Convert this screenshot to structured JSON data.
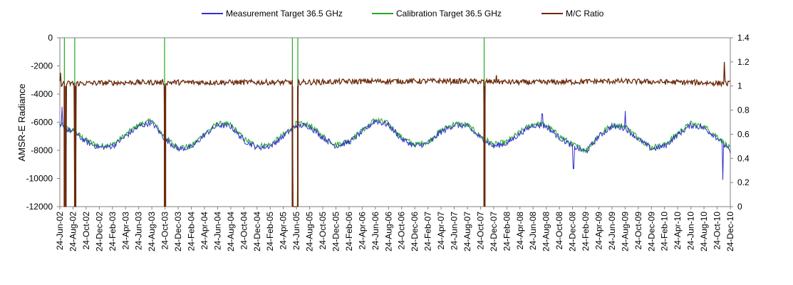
{
  "chart_data": {
    "type": "line",
    "ylabel": "AMSR-E Radiance",
    "y_left_ticks": [
      "0",
      "-2000",
      "-4000",
      "-6000",
      "-8000",
      "-10000",
      "-12000"
    ],
    "y_left_range": [
      -12000,
      0
    ],
    "y_right_ticks": [
      "1.4",
      "1.2",
      "1",
      "0.8",
      "0.6",
      "0.4",
      "0.2",
      "0"
    ],
    "y_right_range": [
      0,
      1.4
    ],
    "x_range": [
      "2002-06-24",
      "2010-12-24"
    ],
    "x_ticks": [
      "24-Jun-02",
      "24-Aug-02",
      "24-Oct-02",
      "24-Dec-02",
      "24-Feb-03",
      "24-Apr-03",
      "24-Jun-03",
      "24-Aug-03",
      "24-Oct-03",
      "24-Dec-03",
      "24-Feb-04",
      "24-Apr-04",
      "24-Jun-04",
      "24-Aug-04",
      "24-Oct-04",
      "24-Dec-04",
      "24-Feb-05",
      "24-Apr-05",
      "24-Jun-05",
      "24-Aug-05",
      "24-Oct-05",
      "24-Dec-05",
      "24-Feb-06",
      "24-Apr-06",
      "24-Jun-06",
      "24-Aug-06",
      "24-Oct-06",
      "24-Dec-06",
      "24-Feb-07",
      "24-Apr-07",
      "24-Jun-07",
      "24-Aug-07",
      "24-Oct-07",
      "24-Dec-07",
      "24-Feb-08",
      "24-Apr-08",
      "24-Jun-08",
      "24-Aug-08",
      "24-Oct-08",
      "24-Dec-08",
      "24-Feb-09",
      "24-Apr-09",
      "24-Jun-09",
      "24-Aug-09",
      "24-Oct-09",
      "24-Dec-09",
      "24-Feb-10",
      "24-Apr-10",
      "24-Jun-10",
      "24-Aug-10",
      "24-Oct-10",
      "24-Dec-10"
    ],
    "legend_position": "top",
    "grid": false,
    "series": [
      {
        "name": "Measurement Target 36.5 GHz",
        "axis": "left",
        "color": "#3333cc",
        "seasonal_points": [
          [
            "2002-06-24",
            -6300
          ],
          [
            "2002-08-24",
            -6700
          ],
          [
            "2002-10-24",
            -7400
          ],
          [
            "2002-12-24",
            -7800
          ],
          [
            "2003-02-24",
            -7700
          ],
          [
            "2003-04-24",
            -7000
          ],
          [
            "2003-06-24",
            -6300
          ],
          [
            "2003-08-24",
            -6000
          ],
          [
            "2003-10-24",
            -7200
          ],
          [
            "2003-12-24",
            -7900
          ],
          [
            "2004-02-24",
            -7800
          ],
          [
            "2004-04-24",
            -6900
          ],
          [
            "2004-06-24",
            -6200
          ],
          [
            "2004-08-24",
            -6300
          ],
          [
            "2004-10-24",
            -7300
          ],
          [
            "2004-12-24",
            -7800
          ],
          [
            "2005-02-24",
            -7700
          ],
          [
            "2005-04-24",
            -7000
          ],
          [
            "2005-06-24",
            -6200
          ],
          [
            "2005-08-24",
            -6300
          ],
          [
            "2005-10-24",
            -7100
          ],
          [
            "2005-12-24",
            -7700
          ],
          [
            "2006-02-24",
            -7400
          ],
          [
            "2006-04-24",
            -6700
          ],
          [
            "2006-06-24",
            -5900
          ],
          [
            "2006-08-24",
            -6200
          ],
          [
            "2006-10-24",
            -7200
          ],
          [
            "2006-12-24",
            -7700
          ],
          [
            "2007-02-24",
            -7500
          ],
          [
            "2007-04-24",
            -6700
          ],
          [
            "2007-06-24",
            -6200
          ],
          [
            "2007-08-24",
            -6300
          ],
          [
            "2007-10-24",
            -7100
          ],
          [
            "2007-12-24",
            -7700
          ],
          [
            "2008-02-24",
            -7500
          ],
          [
            "2008-04-24",
            -6800
          ],
          [
            "2008-06-24",
            -6200
          ],
          [
            "2008-08-24",
            -6300
          ],
          [
            "2008-10-24",
            -7100
          ],
          [
            "2008-12-24",
            -7700
          ],
          [
            "2009-02-24",
            -8100
          ],
          [
            "2009-04-24",
            -7000
          ],
          [
            "2009-06-24",
            -6300
          ],
          [
            "2009-08-24",
            -6400
          ],
          [
            "2009-10-24",
            -7200
          ],
          [
            "2009-12-24",
            -7900
          ],
          [
            "2010-02-24",
            -7700
          ],
          [
            "2010-04-24",
            -6900
          ],
          [
            "2010-06-24",
            -6200
          ],
          [
            "2010-08-24",
            -6400
          ],
          [
            "2010-10-24",
            -7100
          ],
          [
            "2010-12-24",
            -8100
          ]
        ],
        "spikes": [
          [
            "2002-07-05",
            -4900
          ],
          [
            "2008-08-05",
            -5400
          ],
          [
            "2009-08-24",
            -5200
          ],
          [
            "2010-11-20",
            -10100
          ],
          [
            "2008-12-28",
            -9300
          ]
        ]
      },
      {
        "name": "Calibration Target 36.5 GHz",
        "axis": "left",
        "color": "#22aa22",
        "seasonal_points": [
          [
            "2002-06-24",
            -6200
          ],
          [
            "2002-08-24",
            -6600
          ],
          [
            "2002-10-24",
            -7300
          ],
          [
            "2002-12-24",
            -7700
          ],
          [
            "2003-02-24",
            -7600
          ],
          [
            "2003-04-24",
            -6900
          ],
          [
            "2003-06-24",
            -6200
          ],
          [
            "2003-08-24",
            -5900
          ],
          [
            "2003-10-24",
            -7100
          ],
          [
            "2003-12-24",
            -7800
          ],
          [
            "2004-02-24",
            -7700
          ],
          [
            "2004-04-24",
            -6800
          ],
          [
            "2004-06-24",
            -6100
          ],
          [
            "2004-08-24",
            -6200
          ],
          [
            "2004-10-24",
            -7200
          ],
          [
            "2004-12-24",
            -7700
          ],
          [
            "2005-02-24",
            -7600
          ],
          [
            "2005-04-24",
            -6900
          ],
          [
            "2005-06-24",
            -6100
          ],
          [
            "2005-08-24",
            -6200
          ],
          [
            "2005-10-24",
            -7000
          ],
          [
            "2005-12-24",
            -7600
          ],
          [
            "2006-02-24",
            -7300
          ],
          [
            "2006-04-24",
            -6600
          ],
          [
            "2006-06-24",
            -5800
          ],
          [
            "2006-08-24",
            -6100
          ],
          [
            "2006-10-24",
            -7100
          ],
          [
            "2006-12-24",
            -7600
          ],
          [
            "2007-02-24",
            -7400
          ],
          [
            "2007-04-24",
            -6600
          ],
          [
            "2007-06-24",
            -6100
          ],
          [
            "2007-08-24",
            -6200
          ],
          [
            "2007-10-24",
            -7000
          ],
          [
            "2007-12-24",
            -7600
          ],
          [
            "2008-02-24",
            -7400
          ],
          [
            "2008-04-24",
            -6700
          ],
          [
            "2008-06-24",
            -6100
          ],
          [
            "2008-08-24",
            -6200
          ],
          [
            "2008-10-24",
            -7000
          ],
          [
            "2008-12-24",
            -7600
          ],
          [
            "2009-02-24",
            -8000
          ],
          [
            "2009-04-24",
            -6900
          ],
          [
            "2009-06-24",
            -6200
          ],
          [
            "2009-08-24",
            -6300
          ],
          [
            "2009-10-24",
            -7100
          ],
          [
            "2009-12-24",
            -7800
          ],
          [
            "2010-02-24",
            -7600
          ],
          [
            "2010-04-24",
            -6800
          ],
          [
            "2010-06-24",
            -6100
          ],
          [
            "2010-08-24",
            -6300
          ],
          [
            "2010-10-24",
            -7000
          ],
          [
            "2010-12-24",
            -7900
          ]
        ],
        "spikes_to_top": [
          "2002-07-15",
          "2002-09-01",
          "2003-10-22",
          "2005-06-05",
          "2005-06-30",
          "2007-11-10"
        ]
      },
      {
        "name": "M/C Ratio",
        "axis": "right",
        "color": "#6b2a0a",
        "baseline": 1.02,
        "values_approx": [
          [
            "2002-06-24",
            1.02
          ],
          [
            "2003-06-24",
            1.03
          ],
          [
            "2004-06-24",
            1.03
          ],
          [
            "2005-06-24",
            1.03
          ],
          [
            "2006-06-24",
            1.04
          ],
          [
            "2007-06-24",
            1.04
          ],
          [
            "2008-06-24",
            1.03
          ],
          [
            "2009-06-24",
            1.04
          ],
          [
            "2010-06-24",
            1.03
          ],
          [
            "2010-12-24",
            1.02
          ]
        ],
        "spikes": [
          [
            "2002-06-28",
            1.11
          ],
          [
            "2008-01-05",
            1.09
          ],
          [
            "2010-11-26",
            1.2
          ]
        ],
        "drops_to_zero": [
          [
            "2002-07-15",
            "2002-07-22"
          ],
          [
            "2002-09-01",
            "2002-09-05"
          ],
          [
            "2003-10-22",
            "2003-10-26"
          ],
          [
            "2005-06-05",
            "2005-06-30"
          ],
          [
            "2007-11-10",
            "2007-11-13"
          ]
        ]
      }
    ]
  }
}
